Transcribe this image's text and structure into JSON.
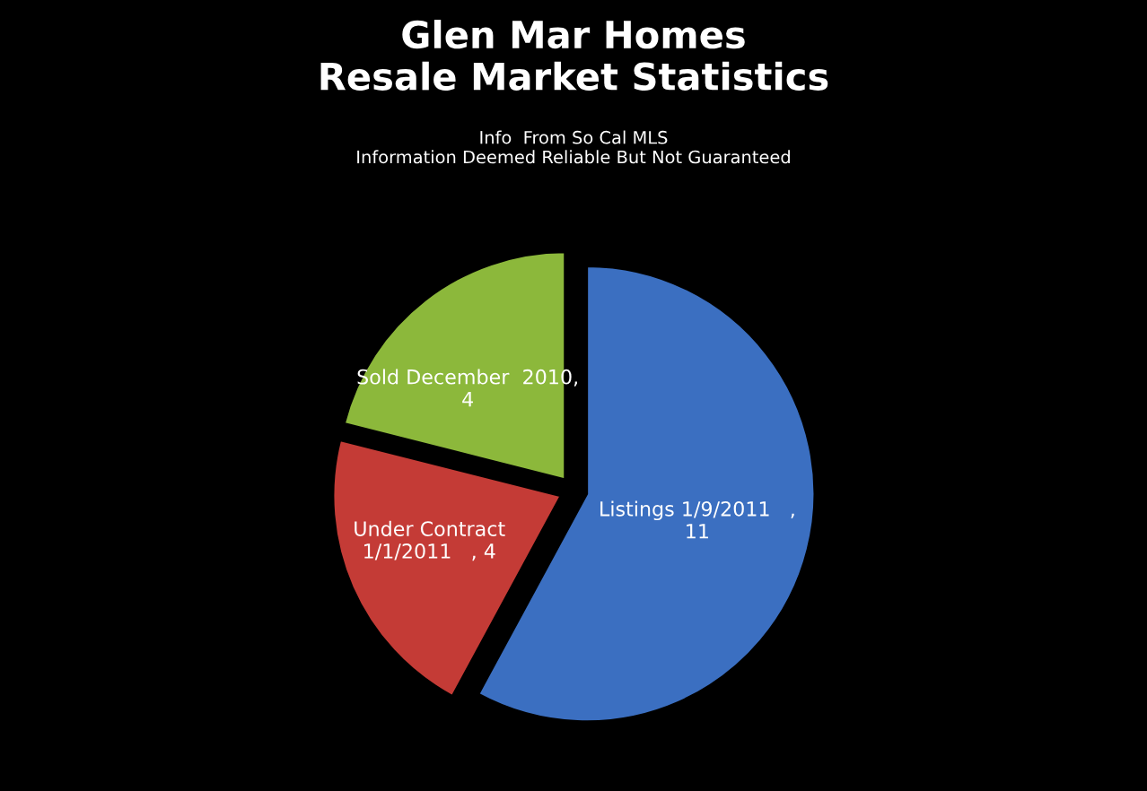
{
  "chart_data": {
    "type": "pie",
    "title": "Glen Mar Homes\nResale Market Statistics",
    "subtitle": "Info  From So Cal MLS\nInformation Deemed Reliable But Not Guaranteed",
    "categories": [
      "Listings 1/9/2011",
      "Under Contract\n1/1/2011",
      "Sold December  2010"
    ],
    "values": [
      11,
      4,
      4
    ],
    "colors": [
      "#3b6fc1",
      "#c43b36",
      "#8cb83b"
    ],
    "value_labels": [
      "   ,\n11",
      "   , 4",
      ",\n4"
    ],
    "legend": false
  }
}
